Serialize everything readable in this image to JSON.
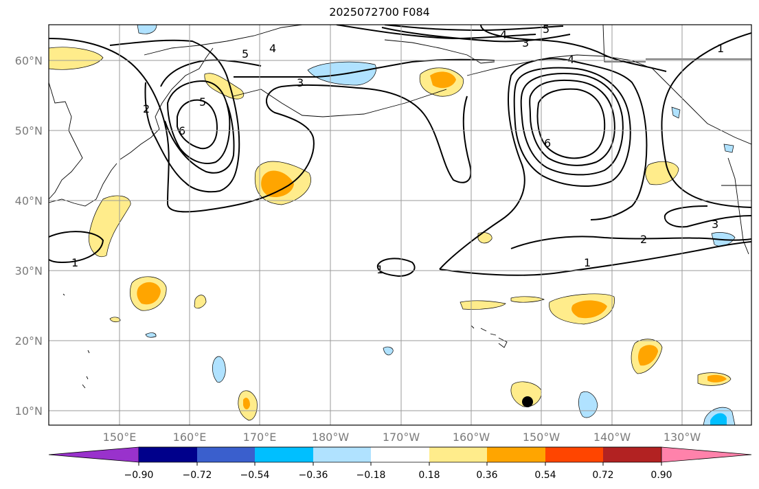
{
  "title": "2025072700 F084",
  "axes": {
    "lat_ticks": [
      "10°N",
      "20°N",
      "30°N",
      "40°N",
      "50°N",
      "60°N"
    ],
    "lon_ticks": [
      "150°E",
      "160°E",
      "170°E",
      "180°W",
      "170°W",
      "160°W",
      "150°W",
      "140°W",
      "130°W"
    ]
  },
  "colorbar": {
    "colors": [
      "#9932cc",
      "#00008b",
      "#3a5fcd",
      "#00bfff",
      "#b0e2ff",
      "#ffffff",
      "#ffec8b",
      "#ffa500",
      "#ff4500",
      "#b22222",
      "#ff82ab"
    ],
    "tick_labels": [
      "−0.90",
      "−0.72",
      "−0.54",
      "−0.36",
      "−0.18",
      "0.18",
      "0.36",
      "0.54",
      "0.72",
      "0.90"
    ]
  },
  "contour_labels": [
    "1",
    "1",
    "1",
    "1",
    "2",
    "2",
    "3",
    "3",
    "3",
    "4",
    "4",
    "4",
    "5",
    "5",
    "5",
    "6",
    "6"
  ],
  "colors": {
    "grid": "#9a9a9a",
    "coast": "#000000",
    "light_yellow": "#ffec8b",
    "orange": "#ffa500",
    "light_blue": "#b0e2ff",
    "blue": "#00bfff"
  }
}
